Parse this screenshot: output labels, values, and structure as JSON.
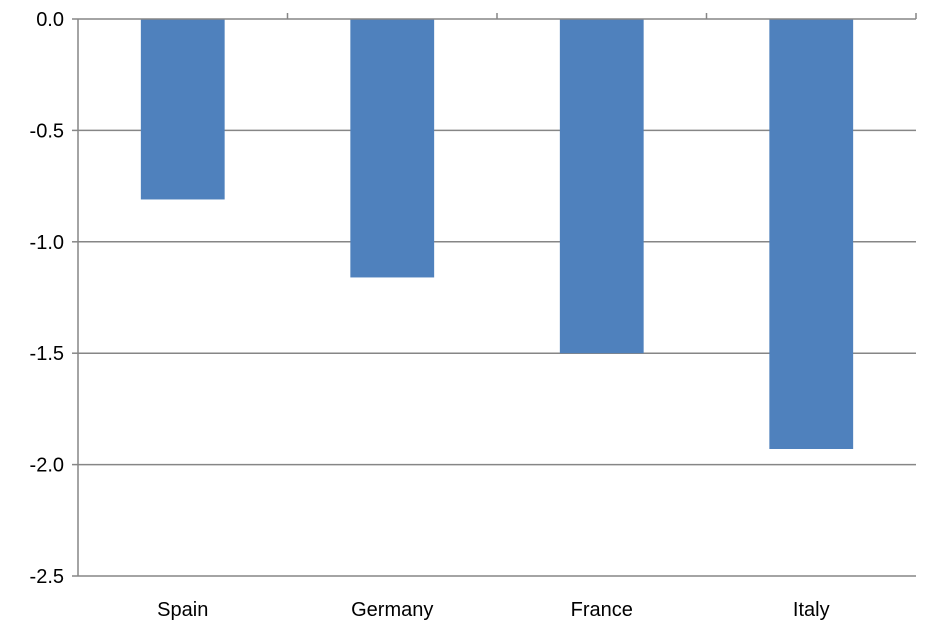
{
  "chart_data": {
    "type": "bar",
    "categories": [
      "Spain",
      "Germany",
      "France",
      "Italy"
    ],
    "values": [
      -0.81,
      -1.16,
      -1.5,
      -1.93
    ],
    "title": "",
    "xlabel": "",
    "ylabel": "",
    "ylim": [
      -2.5,
      0.0
    ],
    "yticks": [
      "0.0",
      "-0.5",
      "-1.0",
      "-1.5",
      "-2.0",
      "-2.5"
    ],
    "grid": true,
    "legend": "none",
    "colors": {
      "bar": "#4F81BD",
      "grid": "#868686",
      "axis": "#868686"
    }
  }
}
